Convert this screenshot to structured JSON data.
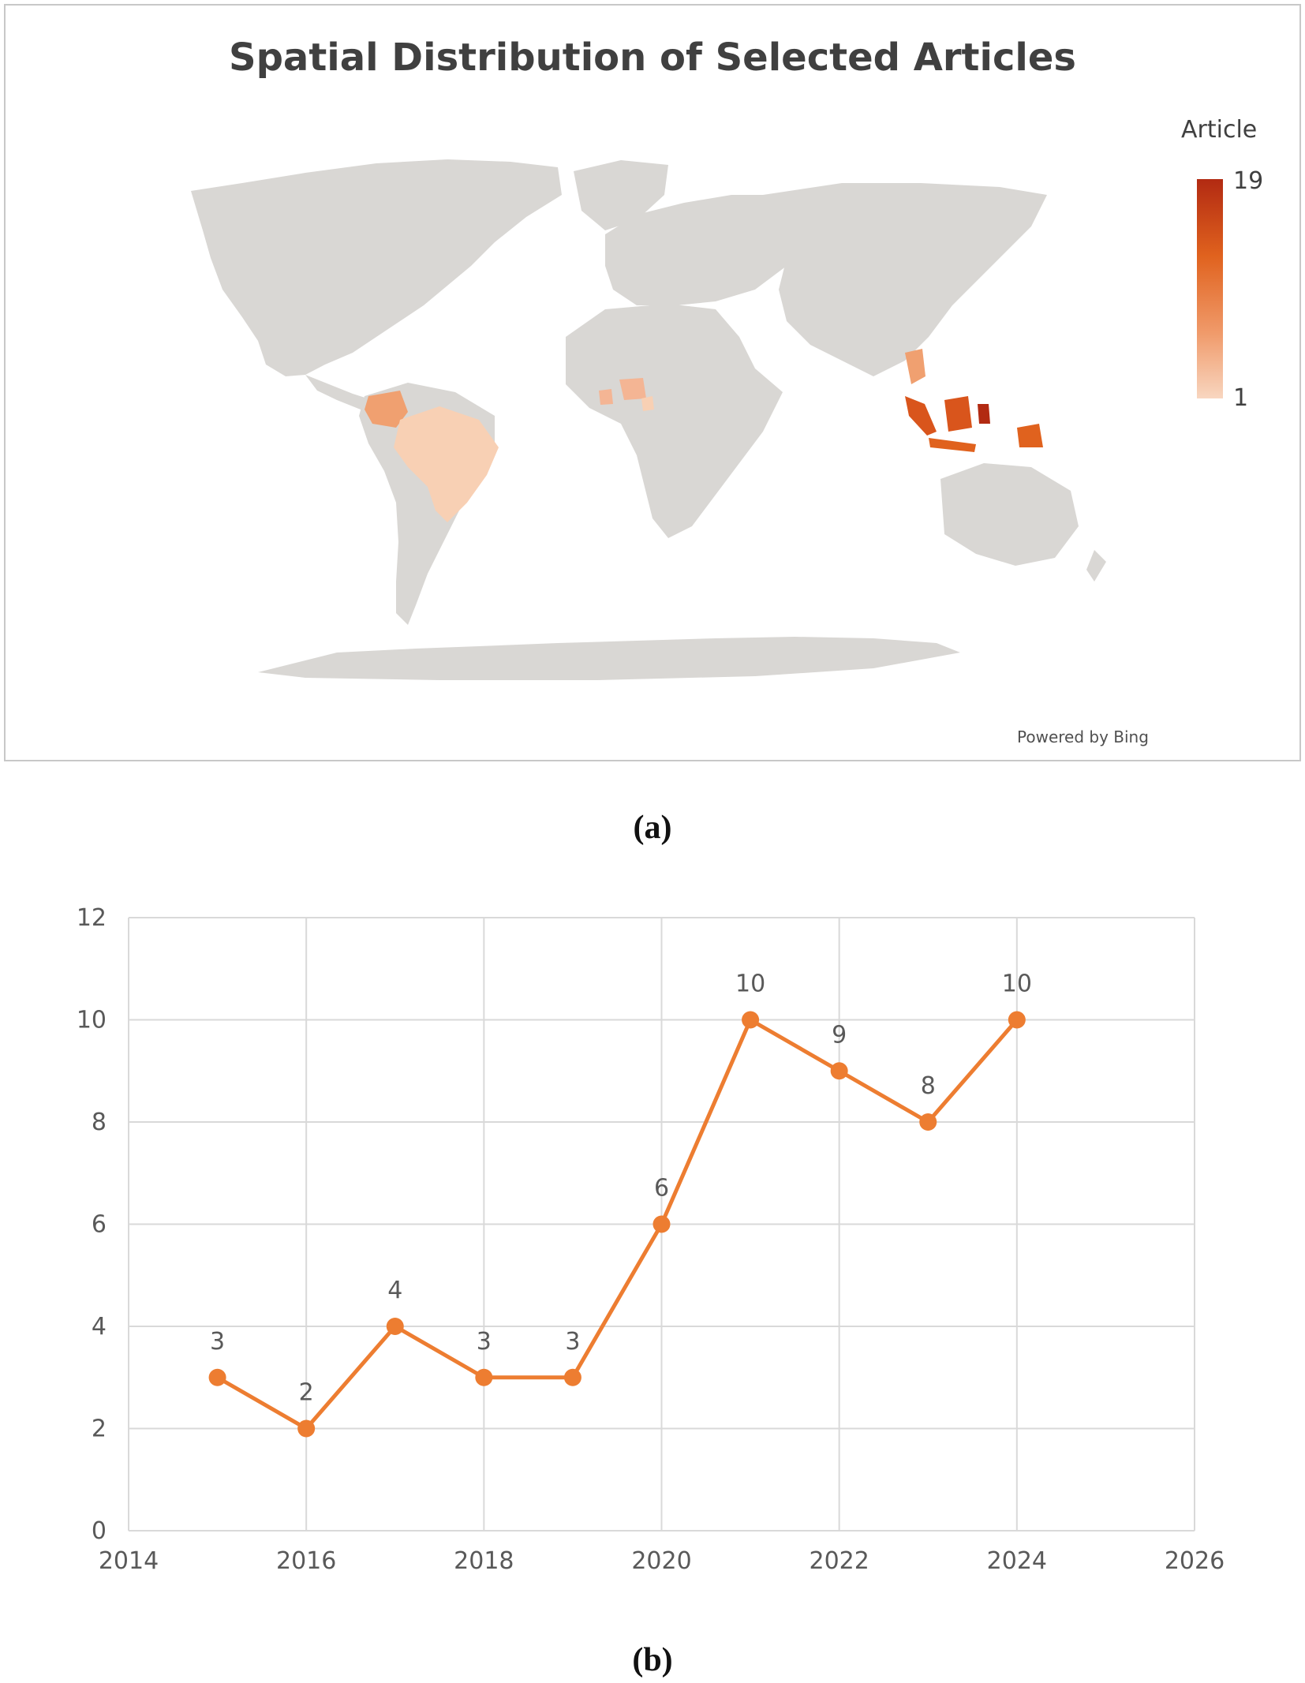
{
  "panel_a": {
    "label": "(a)",
    "map": {
      "title": "Spatial Distribution of Selected Articles",
      "legend_title": "Article",
      "legend_max": "19",
      "legend_min": "1",
      "credit": "Powered by Bing",
      "colors": {
        "land": "#d9d7d4",
        "low": "#f8d6c0",
        "mid": "#f0a070",
        "high": "#e0621e",
        "max": "#b22a12"
      }
    }
  },
  "panel_b": {
    "label": "(b)"
  },
  "chart_data": [
    {
      "type": "map",
      "title": "Spatial Distribution of Selected Articles",
      "legend": {
        "title": "Article",
        "min": 1,
        "max": 19,
        "placement": "right"
      }
    },
    {
      "type": "line",
      "x": [
        2015,
        2016,
        2017,
        2018,
        2019,
        2020,
        2021,
        2022,
        2023,
        2024
      ],
      "series": [
        {
          "values": [
            3,
            2,
            4,
            3,
            3,
            6,
            10,
            9,
            8,
            10
          ],
          "color": "#ed7d31"
        }
      ],
      "data_labels": [
        "3",
        "2",
        "4",
        "3",
        "3",
        "6",
        "10",
        "9",
        "8",
        "10"
      ],
      "xlim": [
        2014,
        2026
      ],
      "ylim": [
        0,
        12
      ],
      "x_ticks": [
        2014,
        2016,
        2018,
        2020,
        2022,
        2024,
        2026
      ],
      "y_ticks": [
        0,
        2,
        4,
        6,
        8,
        10,
        12
      ],
      "grid": true,
      "xlabel": "",
      "ylabel": "",
      "title": ""
    }
  ]
}
